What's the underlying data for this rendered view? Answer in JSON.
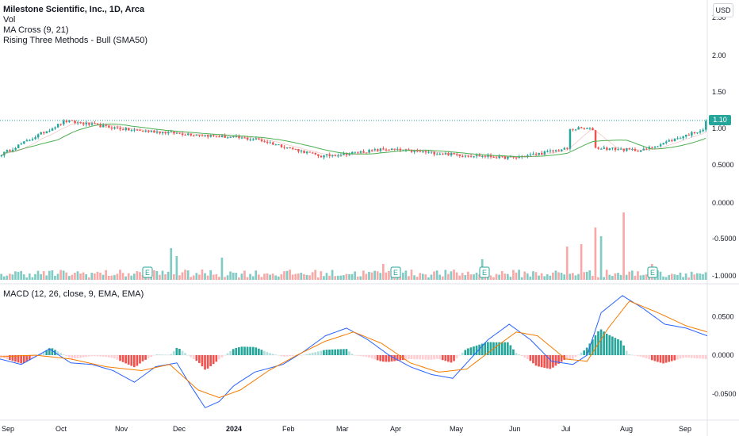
{
  "legend": {
    "title": "Milestone Scientific, Inc., 1D, Arca",
    "vol": "Vol",
    "ma_cross": "MA Cross (9, 21)",
    "pattern": "Rising Three Methods - Bull (SMA50)"
  },
  "macd_legend": "MACD (12, 26, close, 9, EMA, EMA)",
  "currency": "USD",
  "last_price": "1.10",
  "colors": {
    "up": "#26a69a",
    "down": "#ef5350",
    "macd": "#2962ff",
    "signal": "#f57c00",
    "ma": "#4caf50"
  },
  "chart_data": [
    {
      "type": "candlestick",
      "title": "Milestone Scientific, Inc., 1D, Arca",
      "x_ticks": [
        "Sep",
        "Oct",
        "Nov",
        "Dec",
        "2024",
        "Feb",
        "Mar",
        "Apr",
        "May",
        "Jun",
        "Jul",
        "Aug",
        "Sep"
      ],
      "y_ticks": [
        "2.50",
        "2.00",
        "1.50",
        "1.00",
        "0.5000",
        "0.0000",
        "-0.5000",
        "-1.0000"
      ],
      "ylim": [
        -1.0,
        2.5
      ],
      "last": 1.1,
      "approx_close_by_month": {
        "Sep": 1.1,
        "Oct": 0.98,
        "Nov": 0.92,
        "Dec": 0.85,
        "2024": 0.65,
        "Feb": 0.62,
        "Mar": 0.72,
        "Apr": 0.65,
        "May": 0.6,
        "Jun": 0.75,
        "Jul": 0.7,
        "Aug": 1.0
      },
      "moving_averages": [
        "MA 9",
        "MA 21"
      ],
      "earnings_markers": [
        "Nov",
        "Mar",
        "Jun",
        "Aug"
      ]
    },
    {
      "type": "bar",
      "title": "Vol",
      "note": "relative volume bars, green = up day, red = down day; spikes in Dec, Apr, Jun, Jul, Aug"
    },
    {
      "type": "line",
      "title": "MACD (12, 26, close, 9, EMA, EMA)",
      "y_ticks": [
        "0.0500",
        "0.0000",
        "-0.0500"
      ],
      "ylim": [
        -0.07,
        0.08
      ],
      "series": [
        {
          "name": "MACD",
          "points": [
            [
              0,
              -0.005
            ],
            [
              0.03,
              -0.012
            ],
            [
              0.07,
              0.008
            ],
            [
              0.1,
              -0.01
            ],
            [
              0.13,
              -0.012
            ],
            [
              0.16,
              -0.02
            ],
            [
              0.19,
              -0.035
            ],
            [
              0.22,
              -0.015
            ],
            [
              0.25,
              -0.01
            ],
            [
              0.27,
              -0.04
            ],
            [
              0.29,
              -0.068
            ],
            [
              0.31,
              -0.06
            ],
            [
              0.33,
              -0.04
            ],
            [
              0.36,
              -0.022
            ],
            [
              0.4,
              -0.012
            ],
            [
              0.43,
              0.005
            ],
            [
              0.46,
              0.025
            ],
            [
              0.49,
              0.035
            ],
            [
              0.52,
              0.02
            ],
            [
              0.55,
              0.0
            ],
            [
              0.58,
              -0.015
            ],
            [
              0.61,
              -0.025
            ],
            [
              0.64,
              -0.03
            ],
            [
              0.66,
              -0.01
            ],
            [
              0.69,
              0.02
            ],
            [
              0.72,
              0.04
            ],
            [
              0.75,
              0.02
            ],
            [
              0.78,
              -0.008
            ],
            [
              0.81,
              -0.012
            ],
            [
              0.83,
              0.0
            ],
            [
              0.85,
              0.055
            ],
            [
              0.88,
              0.077
            ],
            [
              0.91,
              0.06
            ],
            [
              0.94,
              0.04
            ],
            [
              0.97,
              0.035
            ],
            [
              1.0,
              0.025
            ]
          ]
        },
        {
          "name": "Signal",
          "points": [
            [
              0,
              -0.002
            ],
            [
              0.05,
              0.0
            ],
            [
              0.1,
              -0.005
            ],
            [
              0.15,
              -0.015
            ],
            [
              0.2,
              -0.02
            ],
            [
              0.24,
              -0.012
            ],
            [
              0.28,
              -0.045
            ],
            [
              0.31,
              -0.055
            ],
            [
              0.34,
              -0.045
            ],
            [
              0.38,
              -0.02
            ],
            [
              0.42,
              0.0
            ],
            [
              0.46,
              0.018
            ],
            [
              0.5,
              0.03
            ],
            [
              0.54,
              0.015
            ],
            [
              0.58,
              -0.01
            ],
            [
              0.62,
              -0.022
            ],
            [
              0.66,
              -0.018
            ],
            [
              0.7,
              0.01
            ],
            [
              0.73,
              0.03
            ],
            [
              0.76,
              0.025
            ],
            [
              0.8,
              -0.005
            ],
            [
              0.83,
              -0.008
            ],
            [
              0.86,
              0.035
            ],
            [
              0.89,
              0.07
            ],
            [
              0.93,
              0.055
            ],
            [
              0.97,
              0.038
            ],
            [
              1.0,
              0.03
            ]
          ]
        }
      ]
    }
  ]
}
